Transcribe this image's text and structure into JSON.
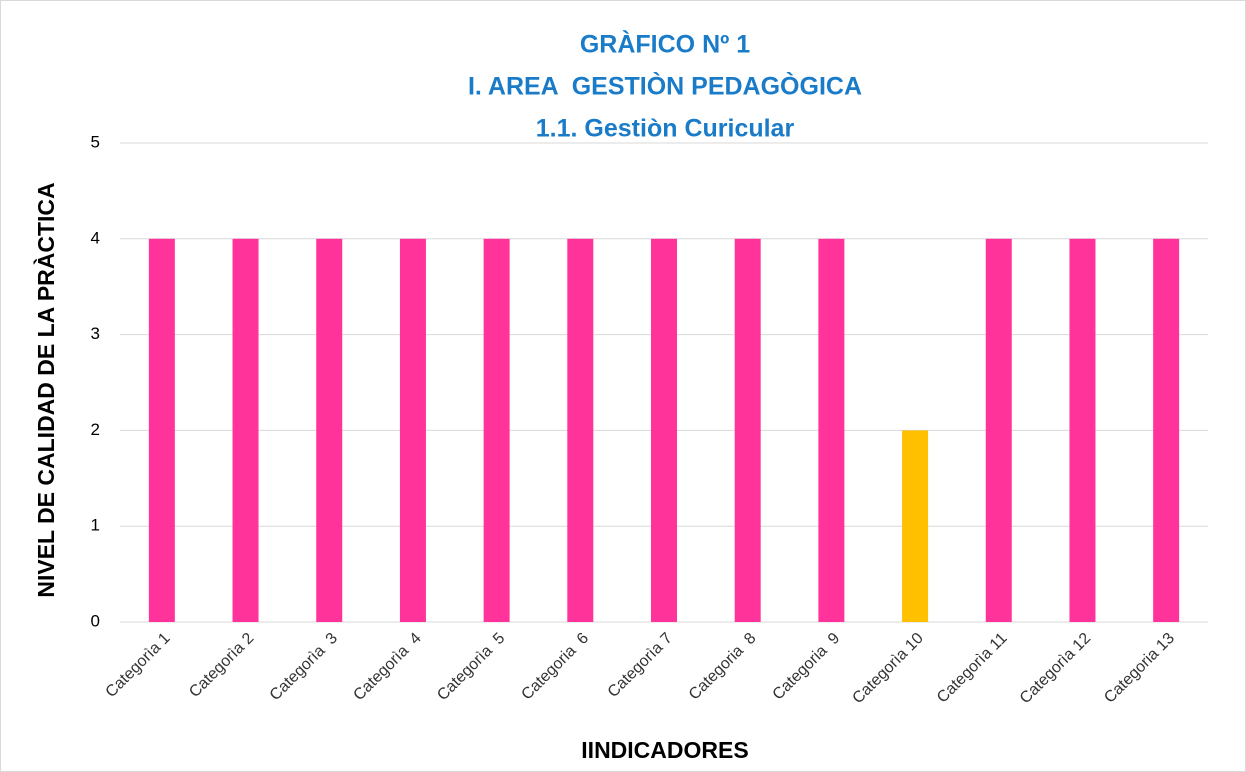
{
  "chart_data": {
    "type": "bar",
    "title": [
      "GRÀFICO Nº 1",
      "I. AREA  GESTIÒN PEDAGÒGICA",
      "1.1. Gestiòn Curicular"
    ],
    "x_label": "IINDICADORES",
    "y_label": "NIVEL DE CALIDAD DE LA PRÀCTICA",
    "categories": [
      "Categorìa 1",
      "Categorìa 2",
      "Categorìa  3",
      "Categorìa  4",
      "Categorìa  5",
      "Categoria  6",
      "Categorìa 7",
      "Categoria  8",
      "Categoria  9",
      "Categorìa 10",
      "Categorìa 11",
      "Categorìa 12",
      "Categoria 13"
    ],
    "values": [
      4,
      4,
      4,
      4,
      4,
      4,
      4,
      4,
      4,
      2,
      4,
      4,
      4
    ],
    "colors": [
      "#ff3399",
      "#ff3399",
      "#ff3399",
      "#ff3399",
      "#ff3399",
      "#ff3399",
      "#ff3399",
      "#ff3399",
      "#ff3399",
      "#ffc000",
      "#ff3399",
      "#ff3399",
      "#ff3399"
    ],
    "ylim": [
      0,
      5
    ],
    "yticks": [
      0,
      1,
      2,
      3,
      4,
      5
    ],
    "grid": true
  }
}
